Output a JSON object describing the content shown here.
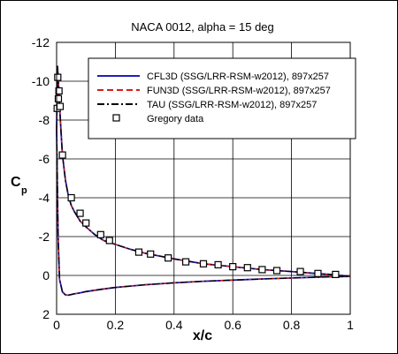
{
  "chart_data": {
    "type": "line",
    "title": "NACA 0012, alpha = 15 deg",
    "xlabel": "x/c",
    "ylabel_main": "C",
    "ylabel_sub": "p",
    "xlim": [
      0,
      1
    ],
    "ylim": [
      2,
      -12
    ],
    "y_inverted": true,
    "grid": true,
    "legend_placement": "top-right",
    "x_ticks": [
      0,
      0.2,
      0.4,
      0.6,
      0.8,
      1
    ],
    "x_tick_labels": [
      "0",
      "0.2",
      "0.4",
      "0.6",
      "0.8",
      "1"
    ],
    "y_ticks": [
      2,
      0,
      -2,
      -4,
      -6,
      -8,
      -10,
      -12
    ],
    "y_tick_labels": [
      "2",
      "0",
      "-2",
      "-4",
      "-6",
      "-8",
      "-10",
      "-12"
    ],
    "series": [
      {
        "name": "CFL3D (SSG/LRR-RSM-w2012), 897x257",
        "color": "#1f1fbf",
        "style": "solid",
        "upper": {
          "x": [
            0,
            0.003,
            0.006,
            0.01,
            0.015,
            0.02,
            0.03,
            0.04,
            0.05,
            0.06,
            0.08,
            0.1,
            0.13,
            0.16,
            0.2,
            0.25,
            0.3,
            0.35,
            0.4,
            0.5,
            0.6,
            0.7,
            0.8,
            0.9,
            0.95,
            1
          ],
          "y": [
            -7.5,
            -10.8,
            -10.0,
            -8.8,
            -7.4,
            -6.2,
            -4.9,
            -4.1,
            -3.6,
            -3.3,
            -2.8,
            -2.5,
            -2.1,
            -1.8,
            -1.6,
            -1.35,
            -1.15,
            -1.0,
            -0.85,
            -0.6,
            -0.45,
            -0.3,
            -0.2,
            -0.08,
            -0.03,
            0.05
          ]
        },
        "lower": {
          "x": [
            0,
            0.005,
            0.01,
            0.02,
            0.03,
            0.04,
            0.06,
            0.08,
            0.1,
            0.15,
            0.2,
            0.3,
            0.4,
            0.5,
            0.6,
            0.7,
            0.8,
            0.9,
            1
          ],
          "y": [
            -7.5,
            -2.0,
            0.2,
            0.85,
            1.0,
            1.02,
            0.95,
            0.9,
            0.83,
            0.72,
            0.62,
            0.48,
            0.38,
            0.3,
            0.24,
            0.18,
            0.13,
            0.08,
            0.05
          ]
        }
      },
      {
        "name": "FUN3D (SSG/LRR-RSM-w2012), 897x257",
        "color": "#d81c1c",
        "style": "dashed",
        "same_as": 0
      },
      {
        "name": "TAU (SSG/LRR-RSM-w2012), 897x257",
        "color": "#000000",
        "style": "dashdot",
        "same_as": 0
      },
      {
        "name": "Gregory data",
        "color": "#000000",
        "style": "marker-square",
        "x": [
          0.002,
          0.004,
          0.006,
          0.008,
          0.012,
          0.02,
          0.05,
          0.08,
          0.1,
          0.15,
          0.18,
          0.28,
          0.32,
          0.38,
          0.44,
          0.5,
          0.55,
          0.6,
          0.65,
          0.7,
          0.75,
          0.83,
          0.89,
          0.95
        ],
        "y": [
          -8.6,
          -10.2,
          -9.1,
          -9.5,
          -8.7,
          -6.2,
          -4.0,
          -3.2,
          -2.7,
          -2.1,
          -1.8,
          -1.2,
          -1.1,
          -0.9,
          -0.7,
          -0.6,
          -0.55,
          -0.45,
          -0.4,
          -0.3,
          -0.25,
          -0.2,
          -0.1,
          -0.05
        ]
      }
    ]
  }
}
